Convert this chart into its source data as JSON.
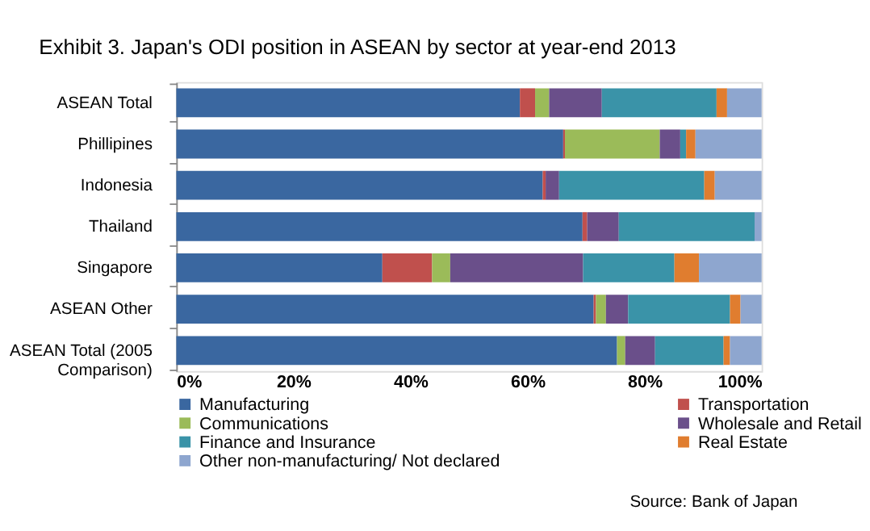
{
  "chart_data": {
    "type": "bar",
    "orientation": "horizontal",
    "stacked": true,
    "title": "Exhibit 3. Japan's ODI position in ASEAN by sector at year-end 2013",
    "categories": [
      "ASEAN Total",
      "Phillipines",
      "Indonesia",
      "Thailand",
      "Singapore",
      "ASEAN Other",
      "ASEAN Total (2005 Comparison)"
    ],
    "series": [
      {
        "name": "Manufacturing",
        "color": "#3a67a0",
        "values": [
          58.7,
          66.1,
          62.6,
          69.4,
          35.2,
          71.3,
          75.3
        ]
      },
      {
        "name": "Transportation",
        "color": "#c0504d",
        "values": [
          2.6,
          0.3,
          0.5,
          0.8,
          8.5,
          0.4,
          0
        ]
      },
      {
        "name": "Communications",
        "color": "#9bbb59",
        "values": [
          2.4,
          16.2,
          0,
          0,
          3.1,
          1.7,
          1.4
        ]
      },
      {
        "name": "Wholesale and Retail",
        "color": "#6a4f8a",
        "values": [
          9.0,
          3.5,
          2.3,
          5.4,
          22.7,
          3.8,
          5.1
        ]
      },
      {
        "name": "Finance and Insurance",
        "color": "#3a93a8",
        "values": [
          19.6,
          1.0,
          24.8,
          23.2,
          15.6,
          17.4,
          11.7
        ]
      },
      {
        "name": "Real Estate",
        "color": "#e07d2f",
        "values": [
          1.8,
          1.6,
          1.8,
          0,
          4.2,
          1.8,
          1.1
        ]
      },
      {
        "name": "Other non-manufacturing/ Not declared",
        "color": "#8ea6cf",
        "values": [
          5.9,
          11.3,
          8.0,
          1.2,
          10.7,
          3.6,
          5.4
        ]
      }
    ],
    "xlim": [
      0,
      100
    ],
    "xticks": [
      {
        "value": 0,
        "label": "0%"
      },
      {
        "value": 20,
        "label": "20%"
      },
      {
        "value": 40,
        "label": "40%"
      },
      {
        "value": 60,
        "label": "60%"
      },
      {
        "value": 80,
        "label": "80%"
      },
      {
        "value": 100,
        "label": "100%"
      }
    ],
    "grid": false,
    "legend": "bottom",
    "annotations": [
      "Source: Bank of Japan"
    ]
  }
}
